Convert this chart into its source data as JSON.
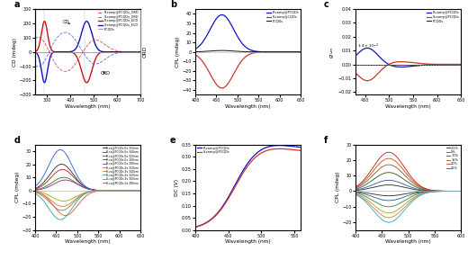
{
  "panel_labels": [
    "a",
    "b",
    "c",
    "d",
    "e",
    "f"
  ],
  "fig_bg": "#ffffff",
  "a_xlim": [
    250,
    700
  ],
  "a_ylim": [
    -300,
    300
  ],
  "a_xlabel": "Wavelength (nm)",
  "a_ylabel": "CD (mdeg)",
  "a_ylabel2": "ORD",
  "b_xlim": [
    400,
    650
  ],
  "b_ylim": [
    -45,
    45
  ],
  "b_xlabel": "Wavelength (nm)",
  "b_ylabel": "CPL (mdeg)",
  "c_xlim": [
    430,
    650
  ],
  "c_ylim": [
    -0.022,
    0.04
  ],
  "c_xlabel": "Wavelength (nm)",
  "c_ylabel": "g_lum",
  "d_xlim": [
    400,
    650
  ],
  "d_ylim": [
    -30,
    35
  ],
  "d_xlabel": "Wavelength (nm)",
  "d_ylabel": "CPL (mdeg)",
  "e_xlim": [
    400,
    560
  ],
  "e_ylim": [
    0,
    0.35
  ],
  "e_xlabel": "Wavelength (nm)",
  "e_ylabel": "DC (V)",
  "f_xlim": [
    400,
    600
  ],
  "f_ylim": [
    -25,
    30
  ],
  "f_xlabel": "Wavelength (nm)",
  "f_ylabel": "CPL (mdeg)",
  "r_color": "#0000cc",
  "s_color": "#cc3333",
  "gray_color": "#888888",
  "d_r_colors": [
    "#333333",
    "#cc2222",
    "#3366cc",
    "#228833",
    "#993399"
  ],
  "d_s_colors": [
    "#888866",
    "#cc8833",
    "#33aaaa",
    "#aaaa22",
    "#dd6633"
  ],
  "d_r_amps": [
    20,
    16,
    31,
    10,
    8
  ],
  "d_s_amps": [
    -15,
    -12,
    -22,
    -8,
    -19
  ],
  "d_ex_wl": [
    350,
    340,
    320,
    300,
    280
  ],
  "f_r_colors": [
    "#333333",
    "#336699",
    "#336633",
    "#886633",
    "#cc5522",
    "#cc2222"
  ],
  "f_s_colors": [
    "#333333",
    "#336699",
    "#448844",
    "#aaaa44",
    "#dd8844",
    "#33aacc"
  ],
  "f_r_amps": [
    4,
    7,
    12,
    17,
    21,
    25
  ],
  "f_s_amps": [
    -3,
    -6,
    -10,
    -14,
    -17,
    -20
  ],
  "f_conc": [
    2.5,
    5,
    10,
    15,
    20,
    25
  ]
}
